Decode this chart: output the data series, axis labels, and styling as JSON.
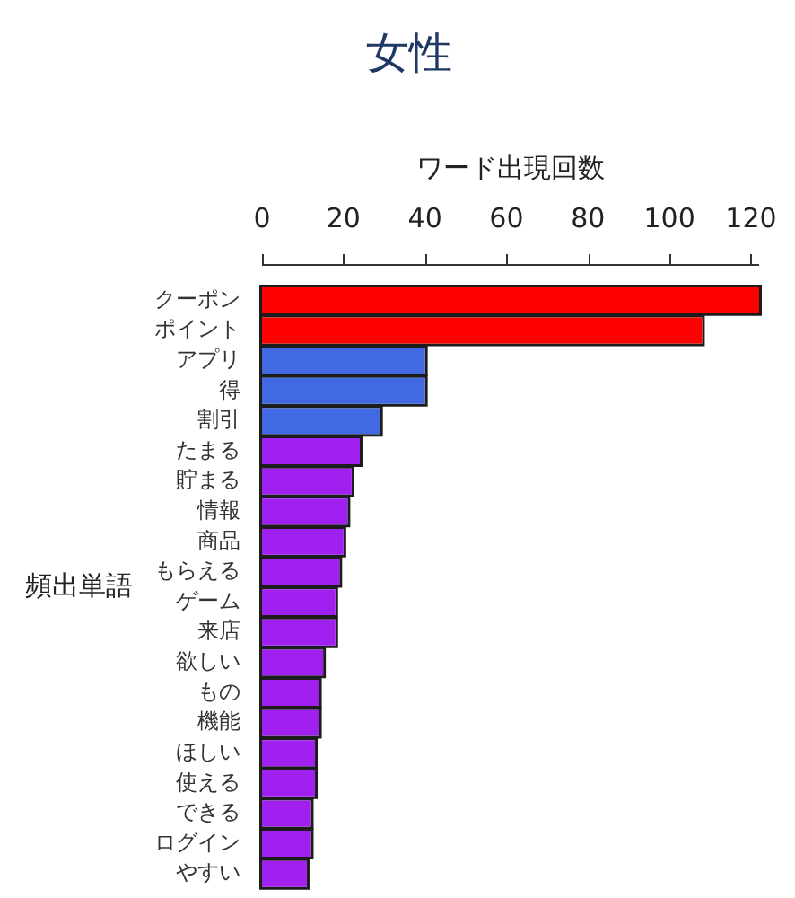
{
  "chart_data": {
    "type": "bar",
    "orientation": "horizontal",
    "title": "女性",
    "xlabel": "ワード出現回数",
    "ylabel": "頻出単語",
    "categories": [
      "クーポン",
      "ポイント",
      "アプリ",
      "得",
      "割引",
      "たまる",
      "貯まる",
      "情報",
      "商品",
      "もらえる",
      "ゲーム",
      "来店",
      "欲しい",
      "もの",
      "機能",
      "ほしい",
      "使える",
      "できる",
      "ログイン",
      "やすい"
    ],
    "values": [
      122,
      108,
      40,
      40,
      29,
      24,
      22,
      21,
      20,
      19,
      18,
      18,
      15,
      14,
      14,
      13,
      13,
      12,
      12,
      11
    ],
    "colors": [
      "#ff0000",
      "#ff0000",
      "#4169e1",
      "#4169e1",
      "#4169e1",
      "#a020f0",
      "#a020f0",
      "#a020f0",
      "#a020f0",
      "#a020f0",
      "#a020f0",
      "#a020f0",
      "#a020f0",
      "#a020f0",
      "#a020f0",
      "#a020f0",
      "#a020f0",
      "#a020f0",
      "#a020f0",
      "#a020f0"
    ],
    "xlim": [
      0,
      122
    ],
    "xticks": [
      0,
      20,
      40,
      60,
      80,
      100,
      120
    ],
    "grid": false
  }
}
